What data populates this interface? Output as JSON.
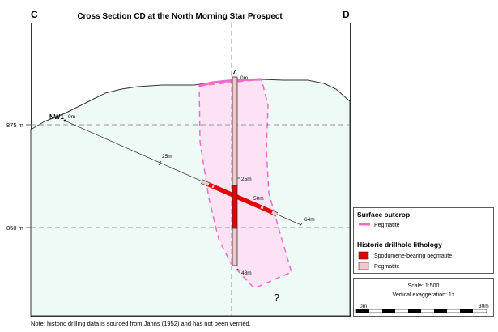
{
  "title": "Cross Section CD at the North Morning Star Prospect",
  "corner_left": "C",
  "corner_right": "D",
  "elevations": {
    "upper": "875 m",
    "lower": "850 m"
  },
  "drillholes": {
    "nw1": {
      "name": "NW1",
      "collar": "0m",
      "mid": "25m",
      "mid2": "50m",
      "end": "64m"
    },
    "dh7": {
      "name": "7",
      "collar": "0m",
      "mid": "25m",
      "end": "48m"
    }
  },
  "unknown_mark": "?",
  "legend": {
    "outcrop_heading": "Surface outcrop",
    "outcrop_item": "Pegmatite",
    "lithology_heading": "Historic drillhole lithology",
    "lithology_items": [
      "Spodumene-bearing pegmatite",
      "Pegmatite"
    ]
  },
  "scale": {
    "ratio": "Scale: 1:500",
    "exaggeration": "Vertical exaggeration: 1x",
    "start": "0m",
    "end": "30m"
  },
  "note": "Note: historic drilling data is sourced from Jahns (1952) and has not been verified.",
  "colors": {
    "ground": "#eefaf6",
    "outcrop": "#f06acb",
    "pegmatite_zone": "#fde2f4",
    "spodumene": "#e60000",
    "pegmatite": "#f4c6cd"
  }
}
